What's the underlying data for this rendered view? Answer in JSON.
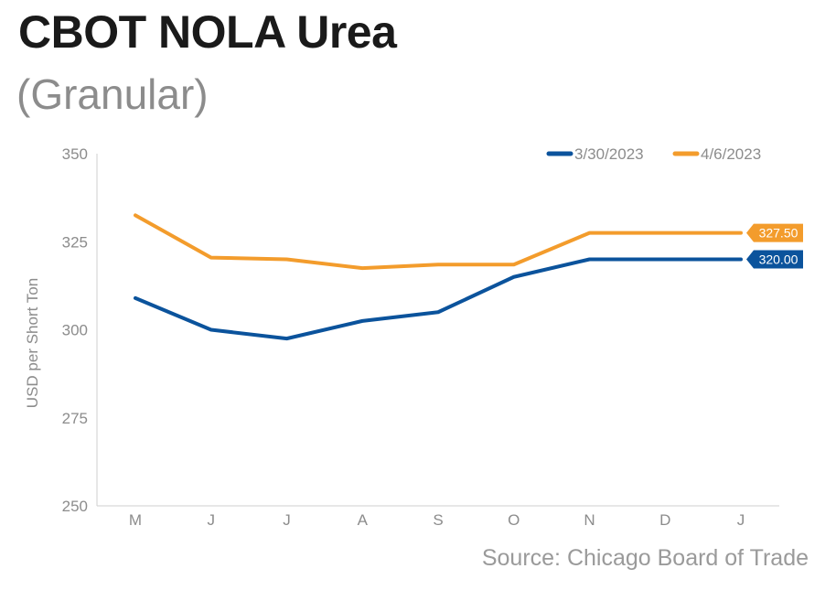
{
  "header": {
    "title": "CBOT NOLA Urea",
    "subtitle": "(Granular)"
  },
  "footer": {
    "source": "Source: Chicago Board of Trade"
  },
  "chart_data": {
    "type": "line",
    "title": "CBOT NOLA Urea",
    "subtitle": "(Granular)",
    "ylabel": "USD per Short Ton",
    "xlabel": "",
    "categories": [
      "M",
      "J",
      "J",
      "A",
      "S",
      "O",
      "N",
      "D",
      "J"
    ],
    "ylim": [
      250,
      350
    ],
    "yticks": [
      250,
      275,
      300,
      325,
      350
    ],
    "grid": false,
    "legend_position": "top-right",
    "series": [
      {
        "name": "3/30/2023",
        "color": "#0b539c",
        "values": [
          309,
          300,
          297.5,
          302.5,
          305,
          315,
          320,
          320,
          320
        ],
        "end_label": "320.00"
      },
      {
        "name": "4/6/2023",
        "color": "#f39c2c",
        "values": [
          332.5,
          320.5,
          320,
          317.5,
          318.5,
          318.5,
          327.5,
          327.5,
          327.5
        ],
        "end_label": "327.50"
      }
    ]
  }
}
